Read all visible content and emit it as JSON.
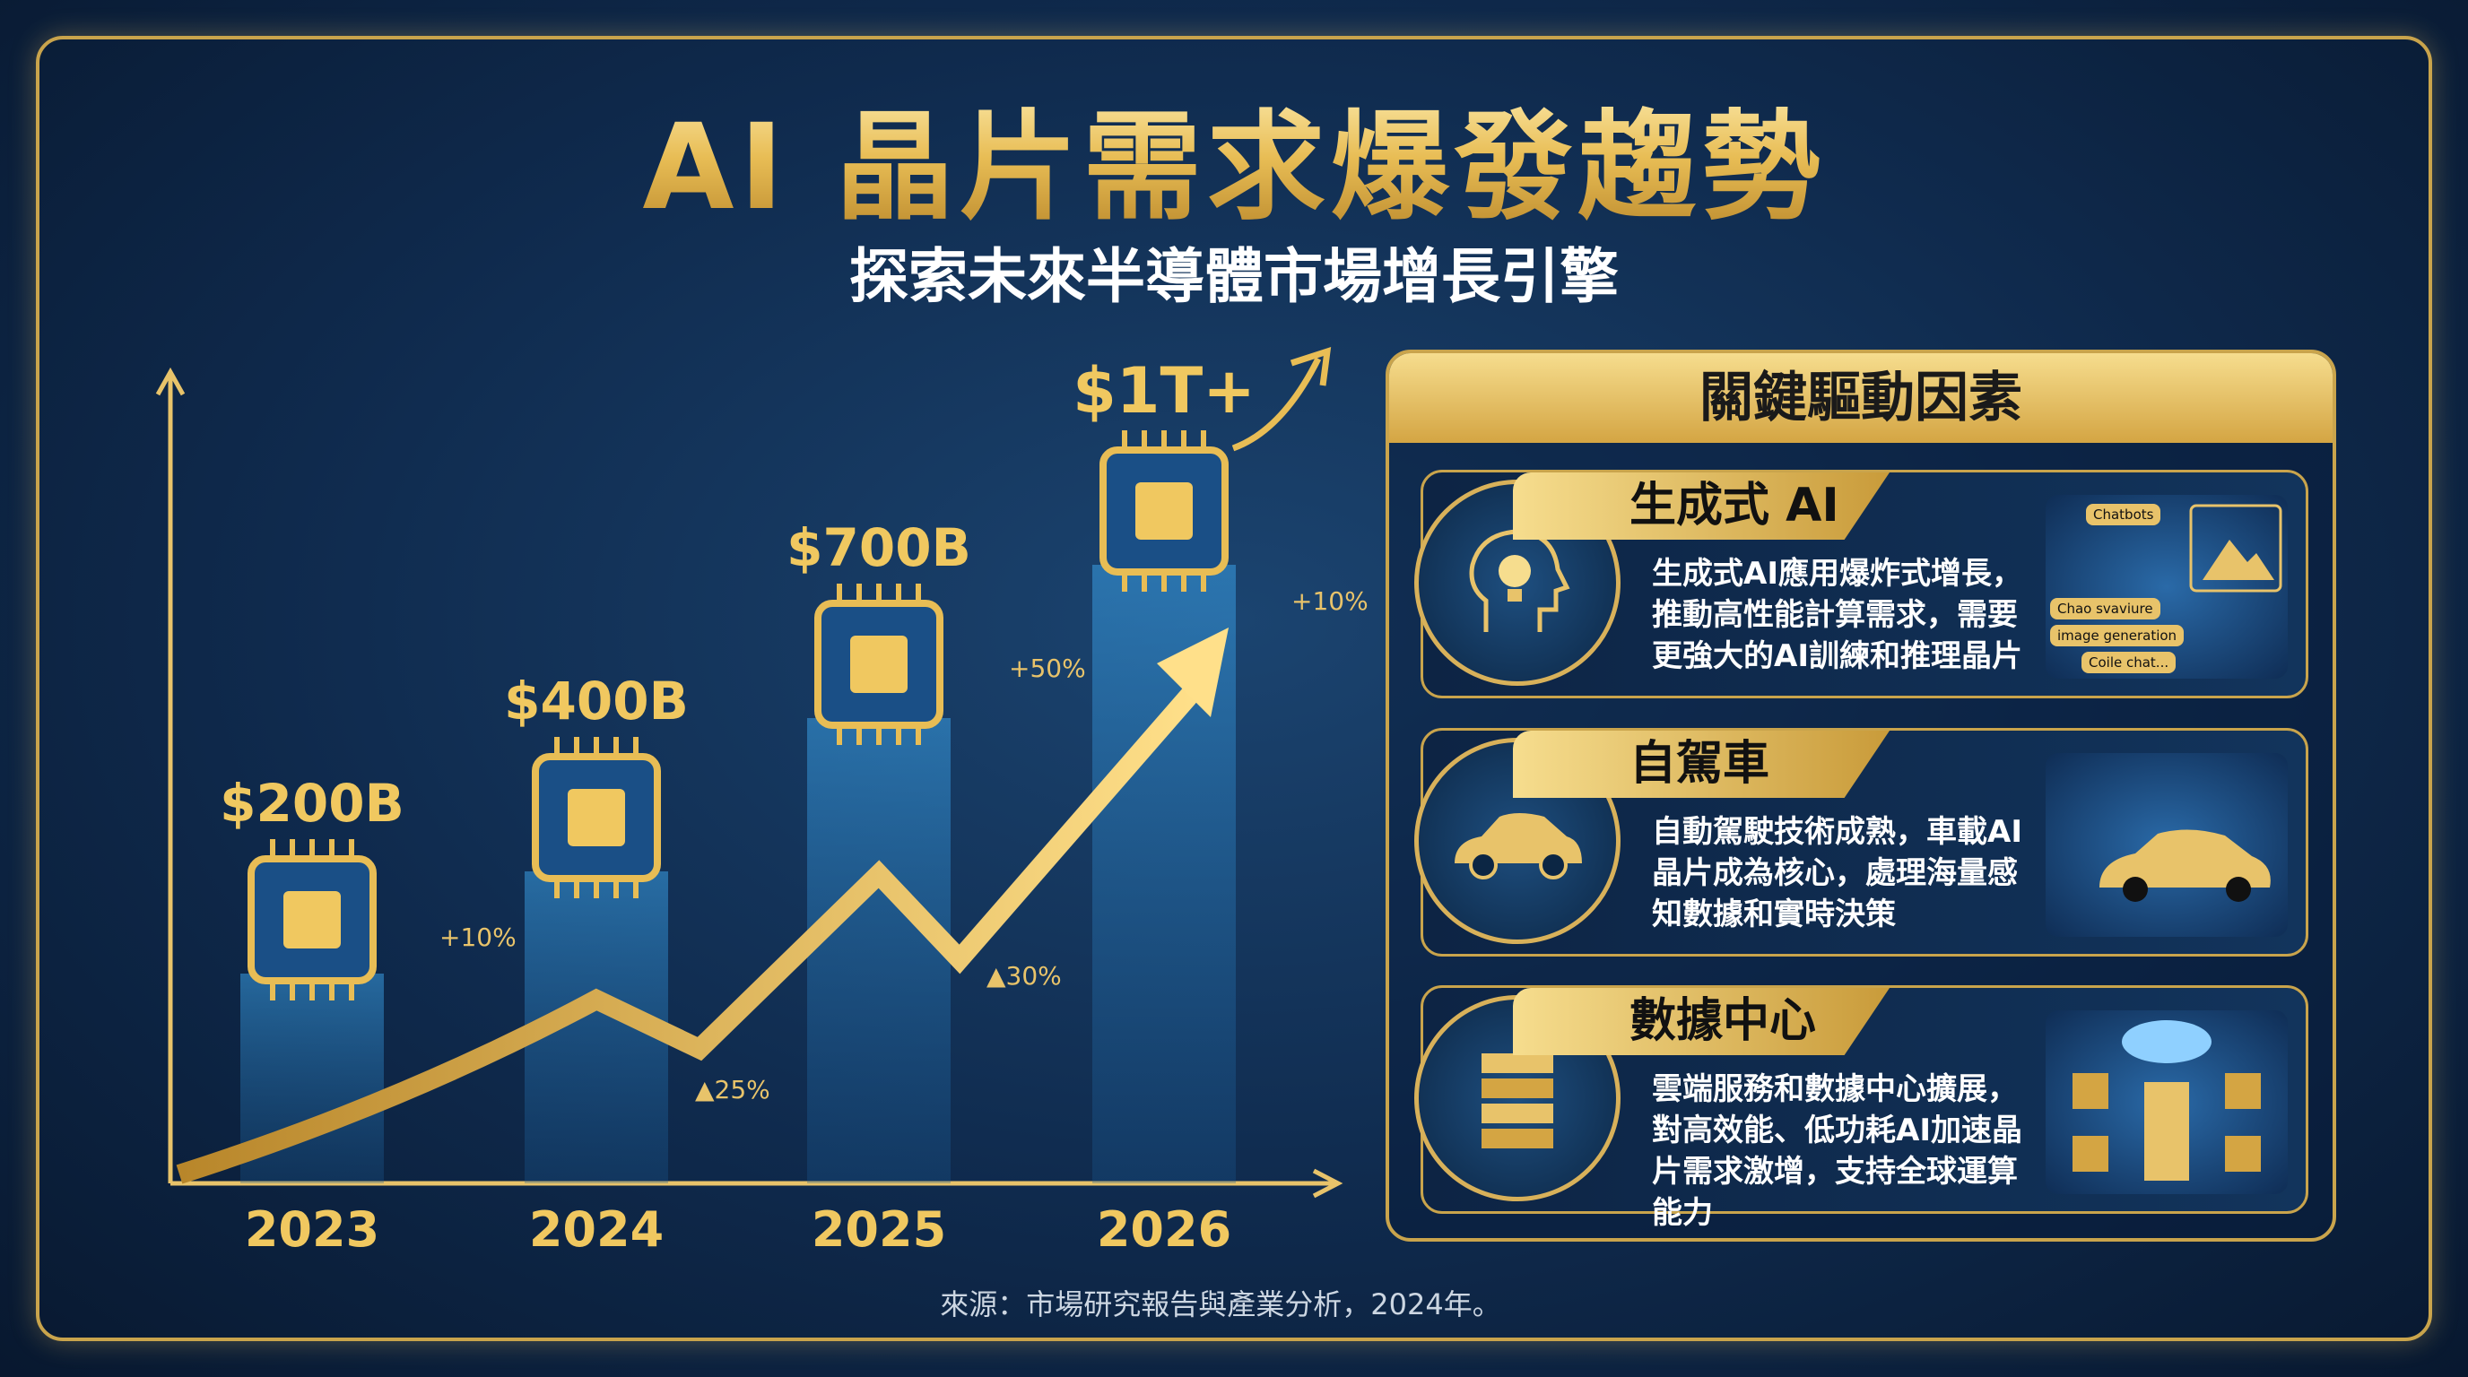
{
  "title": "AI 晶片需求爆發趨勢",
  "subtitle": "探索未來半導體市場增長引擎",
  "chart_data": {
    "type": "bar",
    "categories": [
      "2023",
      "2024",
      "2025",
      "2026"
    ],
    "values": [
      200,
      400,
      700,
      1000
    ],
    "value_labels": [
      "$200B",
      "$400B",
      "$700B",
      "$1T+"
    ],
    "unit": "USD billions",
    "annotations": [
      "+10%",
      "▲25%",
      "+50%",
      "▲30%",
      "+10%"
    ],
    "accent": "#e8bd55",
    "bar_color": "#2a86c8"
  },
  "panel": {
    "title": "關鍵驅動因素",
    "cards": [
      {
        "title": "生成式 AI",
        "icon": "head-lightbulb-icon",
        "text": "生成式AI應用爆炸式增長，推動高性能計算需求，需要更強大的AI訓練和推理晶片",
        "tags": [
          "Chatbots",
          "Chao svaviure",
          "image generation",
          "Coile chat..."
        ]
      },
      {
        "title": "自駕車",
        "icon": "car-icon",
        "text": "自動駕駛技術成熟，車載AI晶片成為核心，處理海量感知數據和實時決策"
      },
      {
        "title": "數據中心",
        "icon": "server-stack-icon",
        "text": "雲端服務和數據中心擴展，對高效能、低功耗AI加速晶片需求激增，支持全球運算能力"
      }
    ]
  },
  "source": "來源：市場研究報告與產業分析，2024年。"
}
